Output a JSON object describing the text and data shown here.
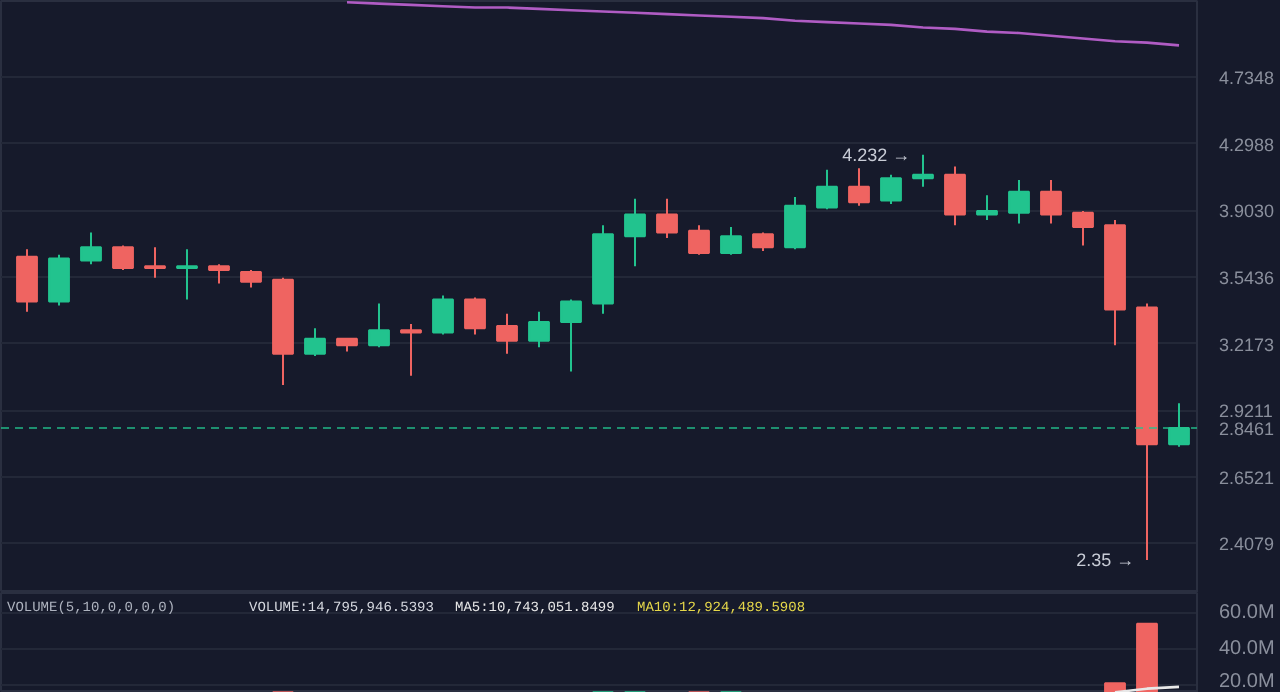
{
  "chart_data": [
    {
      "type": "candlestick",
      "categories": [
        null,
        null,
        null,
        null,
        null,
        null,
        null,
        null,
        null,
        null,
        null,
        null,
        null,
        null,
        null,
        null,
        null,
        null,
        null,
        null,
        null,
        null,
        null,
        null,
        null,
        null,
        null,
        null,
        null,
        null,
        null,
        null,
        null,
        null,
        null,
        null,
        null
      ],
      "ohlc": [
        [
          3.65,
          3.69,
          3.37,
          3.42
        ],
        [
          3.42,
          3.66,
          3.4,
          3.64
        ],
        [
          3.63,
          3.78,
          3.61,
          3.7
        ],
        [
          3.7,
          3.71,
          3.58,
          3.59
        ],
        [
          3.6,
          3.7,
          3.54,
          3.59
        ],
        [
          3.59,
          3.69,
          3.43,
          3.6
        ],
        [
          3.6,
          3.61,
          3.51,
          3.58
        ],
        [
          3.57,
          3.58,
          3.49,
          3.52
        ],
        [
          3.53,
          3.54,
          3.03,
          3.17
        ],
        [
          3.17,
          3.29,
          3.16,
          3.24
        ],
        [
          3.24,
          3.24,
          3.18,
          3.21
        ],
        [
          3.21,
          3.41,
          3.2,
          3.28
        ],
        [
          3.28,
          3.31,
          3.07,
          3.27
        ],
        [
          3.27,
          3.45,
          3.26,
          3.43
        ],
        [
          3.43,
          3.44,
          3.26,
          3.29
        ],
        [
          3.3,
          3.36,
          3.17,
          3.23
        ],
        [
          3.23,
          3.37,
          3.2,
          3.32
        ],
        [
          3.32,
          3.43,
          3.09,
          3.42
        ],
        [
          3.41,
          3.82,
          3.36,
          3.77
        ],
        [
          3.76,
          3.97,
          3.6,
          3.88
        ],
        [
          3.88,
          3.97,
          3.75,
          3.78
        ],
        [
          3.79,
          3.82,
          3.66,
          3.67
        ],
        [
          3.67,
          3.81,
          3.66,
          3.76
        ],
        [
          3.77,
          3.78,
          3.68,
          3.7
        ],
        [
          3.7,
          3.98,
          3.69,
          3.93
        ],
        [
          3.92,
          4.14,
          3.91,
          4.04
        ],
        [
          4.04,
          4.15,
          3.93,
          3.95
        ],
        [
          3.96,
          4.11,
          3.94,
          4.09
        ],
        [
          4.09,
          4.232,
          4.04,
          4.11
        ],
        [
          4.11,
          4.16,
          3.82,
          3.88
        ],
        [
          3.88,
          3.99,
          3.85,
          3.9
        ],
        [
          3.89,
          4.08,
          3.83,
          4.01
        ],
        [
          4.01,
          4.08,
          3.83,
          3.88
        ],
        [
          3.89,
          3.9,
          3.71,
          3.81
        ],
        [
          3.82,
          3.85,
          3.21,
          3.38
        ],
        [
          3.39,
          3.41,
          2.35,
          2.78
        ],
        [
          2.78,
          2.95,
          2.77,
          2.8461
        ]
      ],
      "colors": [
        "#ef6461",
        "#22c38e",
        "#22c38e",
        "#ef6461",
        "#ef6461",
        "#22c38e",
        "#ef6461",
        "#ef6461",
        "#ef6461",
        "#22c38e",
        "#ef6461",
        "#22c38e",
        "#ef6461",
        "#22c38e",
        "#ef6461",
        "#ef6461",
        "#22c38e",
        "#22c38e",
        "#22c38e",
        "#22c38e",
        "#ef6461",
        "#ef6461",
        "#22c38e",
        "#ef6461",
        "#22c38e",
        "#22c38e",
        "#ef6461",
        "#22c38e",
        "#22c38e",
        "#ef6461",
        "#22c38e",
        "#22c38e",
        "#ef6461",
        "#ef6461",
        "#ef6461",
        "#ef6461",
        "#22c38e"
      ],
      "series": [
        {
          "type": "line",
          "color": "#b05cc4",
          "values": [
            null,
            null,
            null,
            null,
            null,
            null,
            null,
            null,
            null,
            null,
            5.28,
            5.27,
            5.26,
            5.25,
            5.24,
            5.24,
            5.23,
            5.22,
            5.21,
            5.2,
            5.19,
            5.18,
            5.17,
            5.16,
            5.14,
            5.13,
            5.12,
            5.11,
            5.09,
            5.08,
            5.06,
            5.05,
            5.03,
            5.01,
            4.99,
            4.98,
            4.96
          ]
        }
      ],
      "log": "y",
      "ylim": [
        2.24,
        5.29
      ],
      "yticks": [
        {
          "value": 2.4079,
          "label": "2.4079"
        },
        {
          "value": 2.6521,
          "label": "2.6521"
        },
        {
          "value": 2.9211,
          "label": "2.9211"
        },
        {
          "value": 3.2173,
          "label": "3.2173"
        },
        {
          "value": 3.5436,
          "label": "3.5436"
        },
        {
          "value": 3.903,
          "label": "3.9030"
        },
        {
          "value": 4.2988,
          "label": "4.2988"
        },
        {
          "value": 4.7348,
          "label": "4.7348"
        }
      ],
      "ref_lines": [
        {
          "axis": "y",
          "value": 2.8461,
          "label": "2.8461",
          "color": "#22c38e",
          "line_style": "dashed"
        }
      ],
      "annotations": [
        "4.232 →",
        "2.35 →"
      ],
      "grid": "y",
      "tick_labels": "y"
    },
    {
      "type": "bar",
      "categories": [
        null,
        null,
        null,
        null,
        null,
        null,
        null,
        null,
        null,
        null,
        null,
        null,
        null,
        null,
        null,
        null,
        null,
        null,
        null,
        null,
        null,
        null,
        null,
        null,
        null,
        null,
        null,
        null,
        null,
        null,
        null,
        null,
        null,
        null,
        null,
        null,
        null
      ],
      "series": [
        {
          "type": "bar",
          "values": [
            null,
            null,
            null,
            null,
            null,
            null,
            null,
            null,
            16000000,
            null,
            null,
            null,
            null,
            null,
            null,
            null,
            null,
            null,
            16000000,
            16000000,
            null,
            16000000,
            16000000,
            null,
            null,
            null,
            null,
            null,
            null,
            null,
            null,
            null,
            null,
            null,
            21000000,
            54000000,
            null
          ],
          "colors": [
            "#ef6461",
            "#22c38e",
            "#22c38e",
            "#ef6461",
            "#ef6461",
            "#22c38e",
            "#ef6461",
            "#ef6461",
            "#ef6461",
            "#22c38e",
            "#ef6461",
            "#22c38e",
            "#ef6461",
            "#22c38e",
            "#ef6461",
            "#ef6461",
            "#22c38e",
            "#22c38e",
            "#22c38e",
            "#22c38e",
            "#ef6461",
            "#ef6461",
            "#22c38e",
            "#ef6461",
            "#22c38e",
            "#22c38e",
            "#ef6461",
            "#22c38e",
            "#22c38e",
            "#ef6461",
            "#22c38e",
            "#22c38e",
            "#ef6461",
            "#ef6461",
            "#ef6461",
            "#ef6461",
            "#22c38e"
          ]
        },
        {
          "type": "line",
          "color": "#e8e8e8",
          "values": [
            null,
            null,
            null,
            null,
            null,
            null,
            null,
            null,
            null,
            null,
            null,
            null,
            null,
            null,
            null,
            null,
            null,
            null,
            null,
            null,
            null,
            null,
            null,
            null,
            null,
            null,
            null,
            null,
            null,
            null,
            null,
            null,
            null,
            null,
            16000000,
            18000000,
            19000000
          ]
        }
      ],
      "ylim": [
        15600000,
        71000000
      ],
      "yticks": [
        {
          "value": 20000000,
          "label": "20.0M"
        },
        {
          "value": 40000000,
          "label": "40.0M"
        },
        {
          "value": 60000000,
          "label": "60.0M"
        }
      ],
      "annotations": [
        "VOLUME(5,10,0,0,0,0)",
        "VOLUME:14,795,946.5393",
        "MA5:10,743,051.8499",
        "MA10:12,924,489.5908"
      ],
      "grid": "y",
      "tick_labels": "y"
    }
  ]
}
